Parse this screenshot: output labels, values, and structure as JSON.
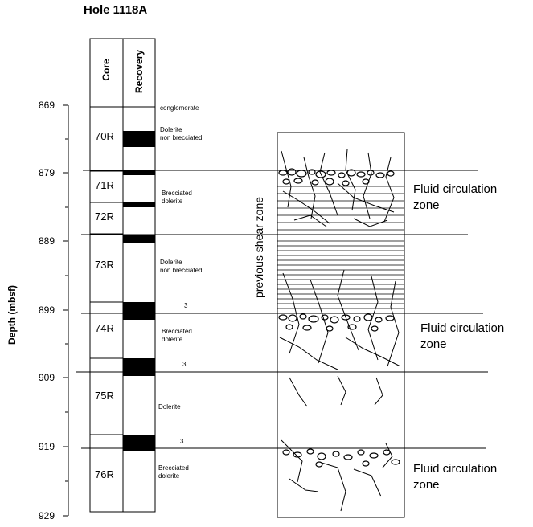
{
  "title": "Hole 1118A",
  "y_axis_label": "Depth (mbsf)",
  "column_headers": {
    "core": "Core",
    "recovery": "Recovery"
  },
  "depth_ticks": [
    "869",
    "879",
    "889",
    "899",
    "909",
    "919",
    "929"
  ],
  "cores": [
    "70R",
    "71R",
    "72R",
    "73R",
    "74R",
    "75R",
    "76R"
  ],
  "lithology": {
    "conglomerate": "conglomerate",
    "dol_nb_1": "Dolerite\nnon brecciated",
    "brecc_1": "Brecciated\ndolerite",
    "dol_nb_2": "Dolerite\nnon brecciated",
    "brecc_2": "Brecciated\ndolerite",
    "dolerite": "Dolerite",
    "brecc_3": "Brecciated\ndolerite"
  },
  "notes": [
    "3",
    "3",
    "3"
  ],
  "shear_zone_label": "previous shear zone",
  "fluid_zones": [
    "Fluid circulation\nzone",
    "Fluid circulation\nzone",
    "Fluid circulation\nzone"
  ]
}
